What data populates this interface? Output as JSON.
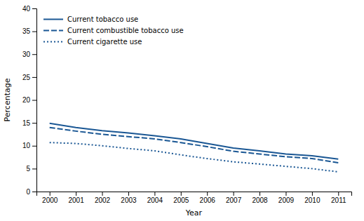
{
  "chart_data": {
    "type": "line",
    "x": [
      2000,
      2001,
      2002,
      2003,
      2004,
      2005,
      2006,
      2007,
      2008,
      2009,
      2010,
      2011
    ],
    "xlim": [
      1999.5,
      2011.5
    ],
    "xticks": [
      2000,
      2001,
      2002,
      2003,
      2004,
      2005,
      2006,
      2007,
      2008,
      2009,
      2010,
      2011
    ],
    "ylim": [
      0,
      40
    ],
    "yticks": [
      0,
      5,
      10,
      15,
      20,
      25,
      30,
      35,
      40
    ],
    "x_label": "Year",
    "y_label": "Percentage",
    "grid": false,
    "legend": "upper left",
    "series": [
      {
        "name": "Current tobacco use",
        "color": "#1a5794",
        "line_style": "solid",
        "values": [
          14.9,
          14.0,
          13.3,
          12.8,
          12.2,
          11.5,
          10.5,
          9.5,
          8.9,
          8.2,
          7.8,
          7.1
        ]
      },
      {
        "name": "Current combustible tobacco use",
        "color": "#1a5794",
        "line_style": "dashed",
        "values": [
          14.0,
          13.2,
          12.5,
          12.0,
          11.5,
          10.7,
          9.8,
          8.8,
          8.2,
          7.6,
          7.2,
          6.3
        ]
      },
      {
        "name": "Current cigarette use",
        "color": "#1a5794",
        "line_style": "dotted",
        "values": [
          10.7,
          10.5,
          10.0,
          9.4,
          8.9,
          8.0,
          7.2,
          6.5,
          6.0,
          5.5,
          5.0,
          4.3
        ]
      }
    ]
  }
}
